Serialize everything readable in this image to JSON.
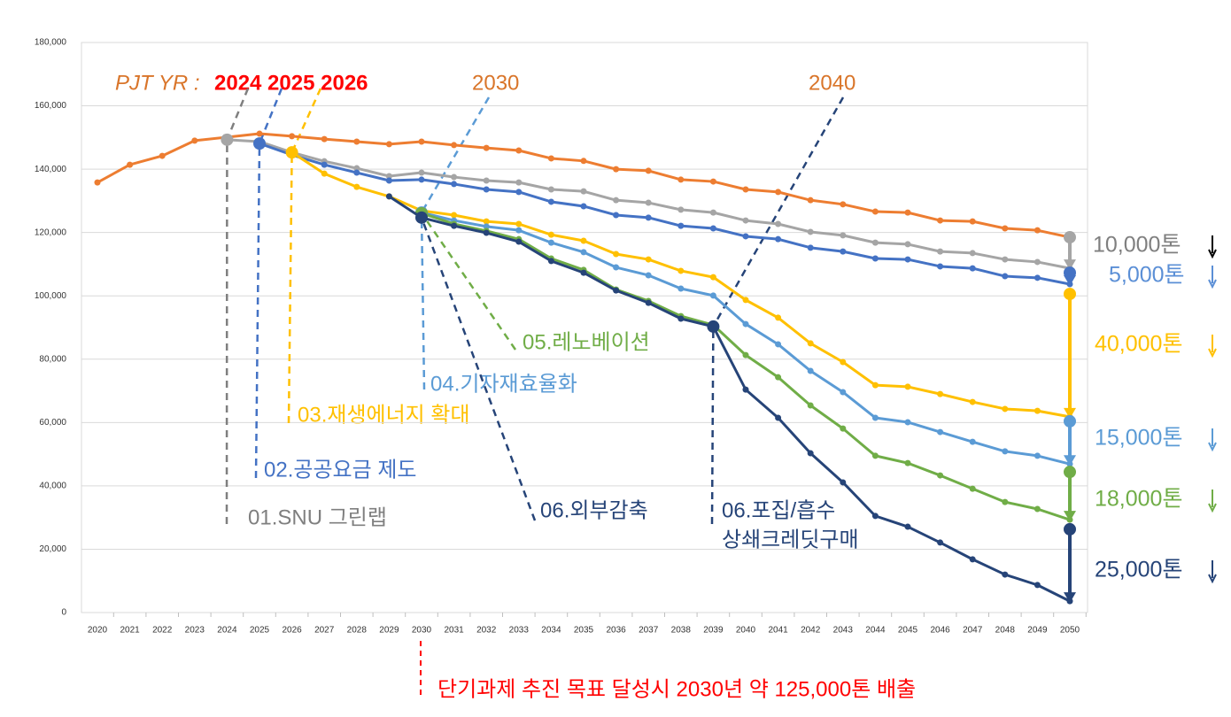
{
  "chart_data": {
    "type": "line",
    "categories": [
      "2020",
      "2021",
      "2022",
      "2023",
      "2024",
      "2025",
      "2026",
      "2027",
      "2028",
      "2029",
      "2030",
      "2031",
      "2032",
      "2033",
      "2034",
      "2035",
      "2036",
      "2037",
      "2038",
      "2039",
      "2040",
      "2041",
      "2042",
      "2043",
      "2044",
      "2045",
      "2046",
      "2047",
      "2048",
      "2049",
      "2050"
    ],
    "ylim": [
      0,
      180000
    ],
    "yticks": [
      0,
      {
        "value": 20000,
        "label": "20,000"
      },
      {
        "value": 40000,
        "label": "40,000"
      },
      {
        "value": 60000,
        "label": "60,000"
      },
      {
        "value": 80000,
        "label": "80,000"
      },
      {
        "value": 100000,
        "label": "100,000"
      },
      {
        "value": 120000,
        "label": "120,000"
      },
      {
        "value": 140000,
        "label": "140,000"
      },
      {
        "value": 160000,
        "label": "160,000"
      },
      {
        "value": 180000,
        "label": "180,000"
      }
    ],
    "grid": true,
    "series": [
      {
        "color": "#ed7d31",
        "values": [
          135800,
          141400,
          144200,
          149000,
          150100,
          151200,
          150400,
          149500,
          148700,
          147900,
          148700,
          147600,
          146700,
          145900,
          143400,
          142600,
          140000,
          139500,
          136700,
          136100,
          133600,
          132800,
          130200,
          128900,
          126600,
          126300,
          123800,
          123500,
          121300,
          120700,
          118500
        ]
      },
      {
        "color": "#a5a5a5",
        "values": [
          null,
          null,
          null,
          null,
          149300,
          148700,
          145300,
          142500,
          140300,
          137800,
          138900,
          137500,
          136400,
          135800,
          133600,
          133000,
          130200,
          129400,
          127200,
          126300,
          123800,
          122700,
          120200,
          119100,
          116800,
          116300,
          114000,
          113500,
          111500,
          110700,
          108700
        ],
        "reduction": {
          "label": "10,000톤",
          "from": 118500,
          "label_color": "#7f7f7f",
          "arrow_color": "#000000"
        }
      },
      {
        "color": "#4472c4",
        "values": [
          null,
          null,
          null,
          null,
          null,
          148100,
          144500,
          141400,
          138900,
          136400,
          136700,
          135300,
          133600,
          132800,
          129700,
          128300,
          125500,
          124700,
          122100,
          121300,
          118800,
          117900,
          115200,
          114000,
          111800,
          111500,
          109300,
          108700,
          106200,
          105700,
          103700
        ],
        "reduction": {
          "label": "5,000톤",
          "from": 107300,
          "label_color": "#5b8fd6",
          "arrow_color": "#5b8fd6"
        }
      },
      {
        "color": "#ffc000",
        "values": [
          null,
          null,
          null,
          null,
          null,
          null,
          145300,
          138600,
          134400,
          131400,
          126900,
          125500,
          123500,
          122700,
          119300,
          117400,
          113200,
          111500,
          107900,
          105900,
          98700,
          93100,
          85000,
          79100,
          71800,
          71300,
          69000,
          66500,
          64300,
          63700,
          61800
        ],
        "reduction": {
          "label": "40,000톤",
          "from": 100600,
          "label_color": "#ffc000",
          "arrow_color": "#ffc000"
        }
      },
      {
        "color": "#5b9bd5",
        "values": [
          null,
          null,
          null,
          null,
          null,
          null,
          null,
          null,
          null,
          null,
          126300,
          123800,
          121900,
          120700,
          116800,
          113800,
          109000,
          106500,
          102300,
          100100,
          91100,
          84700,
          76300,
          69600,
          61500,
          60100,
          57000,
          53900,
          50900,
          49500,
          46900
        ],
        "reduction": {
          "label": "15,000톤",
          "from": 60400,
          "label_color": "#5b9bd5",
          "arrow_color": "#5b9bd5"
        }
      },
      {
        "color": "#70ad47",
        "values": [
          null,
          null,
          null,
          null,
          null,
          null,
          null,
          null,
          null,
          null,
          126100,
          122700,
          120500,
          117900,
          111800,
          108200,
          102000,
          98400,
          93600,
          90800,
          81300,
          74300,
          65400,
          58100,
          49500,
          47200,
          43300,
          39100,
          34900,
          32700,
          29300
        ],
        "reduction": {
          "label": "18,000톤",
          "from": 44400,
          "label_color": "#70ad47",
          "arrow_color": "#70ad47"
        }
      },
      {
        "color": "#264478",
        "values": [
          null,
          null,
          null,
          null,
          null,
          null,
          null,
          null,
          null,
          131400,
          124700,
          122100,
          119900,
          117100,
          111000,
          107300,
          101700,
          97800,
          92800,
          90300,
          70400,
          61500,
          50300,
          41100,
          30500,
          27100,
          22100,
          16800,
          12000,
          8700,
          3600
        ],
        "reduction": {
          "label": "25,000톤",
          "from": 26300,
          "label_color": "#264478",
          "arrow_color": "#264478"
        }
      }
    ],
    "annotations": [
      {
        "text": "PJT YR :",
        "color": "#d9752a"
      },
      {
        "text": "2024 2025 2026",
        "color": "#ff0000"
      },
      {
        "text": "2030",
        "color": "#d9752a"
      },
      {
        "text": "2040",
        "color": "#d9752a"
      },
      {
        "text": "01.SNU 그린랩",
        "color": "#7f7f7f"
      },
      {
        "text": "02.공공요금 제도",
        "color": "#4472c4"
      },
      {
        "text": "03.재생에너지 확대",
        "color": "#ffc000"
      },
      {
        "text": "04.기자재효율화",
        "color": "#5b9bd5"
      },
      {
        "text": "05.레노베이션",
        "color": "#70ad47"
      },
      {
        "text": "06.외부감축",
        "color": "#264478"
      },
      {
        "text": "06.포집/흡수",
        "color": "#264478"
      },
      {
        "text": "상쇄크레딧구매",
        "color": "#264478"
      },
      {
        "text": "단기과제 추진 목표 달성시 2030년 약 125,000톤 배출",
        "color": "#ff0000"
      }
    ]
  }
}
